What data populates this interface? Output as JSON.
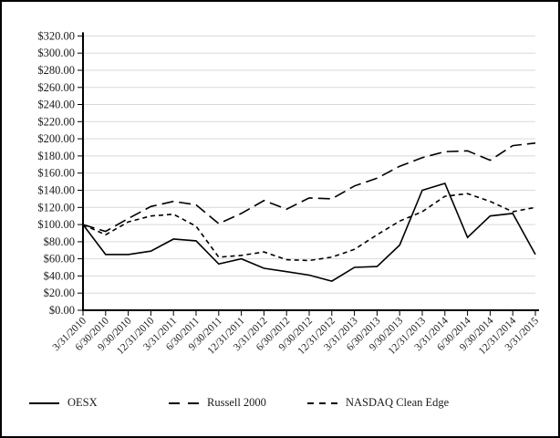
{
  "chart_data": {
    "type": "line",
    "title": "",
    "xlabel": "",
    "ylabel": "",
    "ylim": [
      0,
      320
    ],
    "y_tick_step": 20,
    "grid": true,
    "legend_position": "bottom",
    "line_color": "#000000",
    "grid_color": "#d9d9d9",
    "y_tick_labels": [
      "$0.00",
      "$20.00",
      "$40.00",
      "$60.00",
      "$80.00",
      "$100.00",
      "$120.00",
      "$140.00",
      "$160.00",
      "$180.00",
      "$200.00",
      "$220.00",
      "$240.00",
      "$260.00",
      "$280.00",
      "$300.00",
      "$320.00"
    ],
    "x_labels": [
      "3/31/2010",
      "6/30/2010",
      "9/30/2010",
      "12/31/2010",
      "3/31/2011",
      "6/30/2011",
      "9/30/2011",
      "12/31/2011",
      "3/31/2012",
      "6/30/2012",
      "9/30/2012",
      "12/31/2012",
      "3/31/2013",
      "6/30/2013",
      "9/30/2013",
      "12/31/2013",
      "3/31/2014",
      "6/30/2014",
      "9/30/2014",
      "12/31/2014",
      "3/31/2015"
    ],
    "series": [
      {
        "name": "OESX",
        "style": "solid",
        "values": [
          100,
          65,
          65,
          69,
          83,
          81,
          54,
          60,
          49,
          45,
          41,
          34,
          50,
          51,
          76,
          140,
          148,
          85,
          110,
          113,
          65
        ]
      },
      {
        "name": "Russell 2000",
        "style": "long-dash",
        "values": [
          100,
          92,
          107,
          121,
          127,
          123,
          101,
          113,
          128,
          118,
          131,
          130,
          145,
          154,
          168,
          178,
          185,
          186,
          175,
          192,
          195
        ]
      },
      {
        "name": "NASDAQ Clean Edge",
        "style": "short-dash",
        "values": [
          100,
          88,
          103,
          110,
          112,
          98,
          62,
          64,
          68,
          59,
          58,
          62,
          71,
          88,
          104,
          115,
          133,
          136,
          127,
          115,
          120
        ]
      }
    ]
  }
}
